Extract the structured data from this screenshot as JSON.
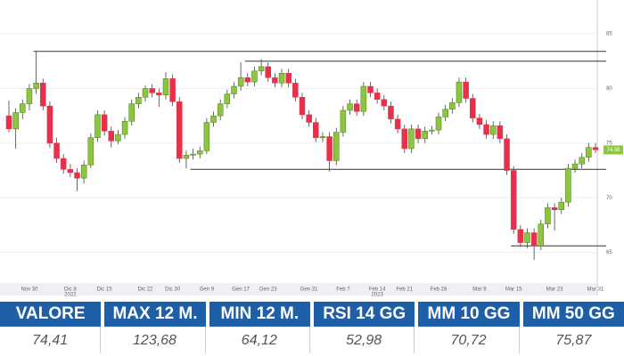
{
  "chart_data": {
    "type": "candlestick",
    "categories": [
      null,
      null,
      null,
      "Nov 30",
      null,
      null,
      null,
      null,
      null,
      "Dic 8",
      null,
      null,
      null,
      null,
      "Dic 15",
      null,
      null,
      null,
      null,
      null,
      "Dic 22",
      null,
      null,
      null,
      "Dic 30",
      null,
      null,
      null,
      null,
      "Gen 9",
      null,
      null,
      null,
      null,
      "Gen 17",
      null,
      null,
      null,
      "Gen 23",
      null,
      null,
      null,
      null,
      null,
      "Gen 31",
      null,
      null,
      null,
      null,
      "Feb 7",
      null,
      null,
      null,
      null,
      "Feb 14",
      null,
      null,
      null,
      "Feb 21",
      null,
      null,
      null,
      null,
      "Feb 28",
      null,
      null,
      null,
      null,
      null,
      "Mar 8",
      null,
      null,
      null,
      null,
      "Mar 15",
      null,
      null,
      null,
      null,
      null,
      "Mar 23",
      null,
      null,
      null,
      null,
      null,
      "Mar 31"
    ],
    "year_labels": [
      {
        "category": 9,
        "label": "2022"
      },
      {
        "category": 54,
        "label": "2023"
      }
    ],
    "ohlc": [
      [
        77.5,
        78.9,
        76.0,
        76.3
      ],
      [
        76.3,
        78.2,
        74.5,
        77.8
      ],
      [
        77.8,
        79.0,
        77.2,
        78.6
      ],
      [
        78.6,
        80.4,
        78.0,
        80.0
      ],
      [
        80.0,
        83.4,
        79.5,
        80.5
      ],
      [
        80.5,
        80.9,
        78.0,
        78.4
      ],
      [
        78.4,
        78.8,
        74.6,
        75.0
      ],
      [
        75.0,
        75.5,
        73.2,
        73.6
      ],
      [
        73.6,
        74.0,
        72.2,
        72.6
      ],
      [
        72.6,
        73.1,
        71.9,
        72.3
      ],
      [
        72.3,
        72.7,
        70.6,
        71.8
      ],
      [
        71.8,
        73.4,
        71.3,
        73.0
      ],
      [
        73.0,
        75.9,
        72.7,
        75.5
      ],
      [
        75.5,
        78.0,
        75.1,
        77.6
      ],
      [
        77.6,
        78.0,
        75.7,
        76.1
      ],
      [
        76.1,
        76.5,
        74.6,
        75.2
      ],
      [
        75.2,
        76.2,
        74.9,
        75.8
      ],
      [
        75.8,
        77.4,
        75.4,
        77.0
      ],
      [
        77.0,
        79.0,
        76.6,
        78.6
      ],
      [
        78.6,
        79.6,
        78.2,
        79.2
      ],
      [
        79.2,
        80.3,
        78.8,
        80.0
      ],
      [
        80.0,
        80.4,
        79.2,
        79.6
      ],
      [
        79.6,
        80.0,
        78.3,
        79.4
      ],
      [
        79.4,
        81.5,
        79.0,
        80.9
      ],
      [
        80.9,
        81.3,
        78.4,
        78.8
      ],
      [
        78.8,
        79.2,
        73.2,
        73.6
      ],
      [
        73.6,
        74.3,
        72.7,
        73.9
      ],
      [
        73.9,
        74.5,
        73.5,
        74.0
      ],
      [
        74.0,
        74.7,
        73.6,
        74.3
      ],
      [
        74.3,
        77.3,
        74.0,
        76.9
      ],
      [
        76.9,
        77.9,
        76.5,
        77.5
      ],
      [
        77.5,
        79.0,
        77.1,
        78.6
      ],
      [
        78.6,
        79.9,
        78.2,
        79.5
      ],
      [
        79.5,
        80.6,
        79.1,
        80.2
      ],
      [
        80.2,
        82.4,
        79.8,
        81.0
      ],
      [
        81.0,
        81.4,
        80.2,
        80.6
      ],
      [
        80.6,
        82.0,
        80.2,
        81.6
      ],
      [
        81.6,
        82.7,
        81.2,
        82.0
      ],
      [
        82.0,
        82.4,
        80.6,
        81.0
      ],
      [
        81.0,
        81.4,
        80.1,
        80.5
      ],
      [
        80.5,
        81.8,
        80.1,
        81.4
      ],
      [
        81.4,
        81.8,
        80.1,
        80.5
      ],
      [
        80.5,
        80.9,
        78.8,
        79.2
      ],
      [
        79.2,
        79.6,
        77.2,
        77.6
      ],
      [
        77.6,
        78.0,
        76.5,
        76.9
      ],
      [
        76.9,
        77.3,
        75.1,
        75.5
      ],
      [
        75.5,
        76.0,
        75.1,
        75.6
      ],
      [
        75.6,
        76.0,
        72.4,
        73.4
      ],
      [
        73.4,
        76.4,
        73.0,
        76.0
      ],
      [
        76.0,
        78.4,
        75.6,
        78.0
      ],
      [
        78.0,
        79.0,
        77.6,
        78.6
      ],
      [
        78.6,
        79.0,
        77.5,
        77.9
      ],
      [
        77.9,
        80.6,
        77.5,
        80.2
      ],
      [
        80.2,
        80.6,
        79.2,
        79.6
      ],
      [
        79.6,
        80.0,
        78.6,
        79.0
      ],
      [
        79.0,
        79.4,
        78.0,
        78.4
      ],
      [
        78.4,
        78.8,
        76.8,
        77.2
      ],
      [
        77.2,
        77.6,
        75.9,
        76.3
      ],
      [
        76.3,
        76.7,
        74.1,
        74.5
      ],
      [
        74.5,
        76.7,
        74.1,
        76.3
      ],
      [
        76.3,
        76.7,
        75.0,
        75.4
      ],
      [
        75.4,
        76.5,
        75.0,
        76.1
      ],
      [
        76.1,
        76.6,
        75.8,
        76.2
      ],
      [
        76.2,
        77.8,
        75.8,
        77.4
      ],
      [
        77.4,
        78.5,
        77.0,
        78.1
      ],
      [
        78.1,
        79.1,
        77.7,
        78.7
      ],
      [
        78.7,
        81.0,
        78.3,
        80.6
      ],
      [
        80.6,
        81.0,
        78.7,
        79.1
      ],
      [
        79.1,
        79.5,
        76.9,
        77.3
      ],
      [
        77.3,
        77.7,
        76.3,
        76.7
      ],
      [
        76.7,
        77.1,
        75.4,
        75.8
      ],
      [
        75.8,
        77.0,
        75.4,
        76.6
      ],
      [
        76.6,
        77.0,
        75.0,
        75.4
      ],
      [
        75.4,
        75.8,
        72.1,
        72.5
      ],
      [
        72.5,
        72.9,
        66.7,
        67.1
      ],
      [
        67.1,
        67.5,
        65.5,
        65.9
      ],
      [
        65.9,
        67.2,
        65.4,
        66.8
      ],
      [
        66.8,
        67.2,
        64.3,
        65.6
      ],
      [
        65.6,
        68.0,
        65.2,
        67.6
      ],
      [
        67.6,
        69.5,
        67.2,
        69.1
      ],
      [
        69.1,
        69.5,
        67.0,
        68.9
      ],
      [
        68.9,
        70.0,
        68.5,
        69.6
      ],
      [
        69.6,
        73.1,
        69.2,
        72.7
      ],
      [
        72.7,
        73.5,
        72.3,
        73.1
      ],
      [
        73.1,
        74.1,
        72.7,
        73.7
      ],
      [
        73.7,
        75.0,
        73.3,
        74.6
      ],
      [
        74.6,
        75.0,
        74.1,
        74.4
      ]
    ],
    "up_color": "#8cc63f",
    "down_color": "#e8304a",
    "levels": [
      {
        "value": 83.4,
        "from": 4
      },
      {
        "value": 82.5,
        "from": 35
      },
      {
        "value": 72.6,
        "from": 27
      },
      {
        "value": 65.6,
        "from": 74
      }
    ],
    "last_price": {
      "value": 74.38,
      "label": "74.38"
    },
    "ylim": [
      62.2,
      88.1
    ],
    "yticks": [
      65,
      70,
      75,
      80,
      85
    ],
    "grid": true
  },
  "table": {
    "headers": [
      "VALORE",
      "MAX 12 M.",
      "MIN 12 M.",
      "RSI 14 GG",
      "MM 10 GG",
      "MM 50 GG"
    ],
    "values": [
      "74,41",
      "123,68",
      "64,12",
      "52,98",
      "70,72",
      "75,87"
    ]
  }
}
